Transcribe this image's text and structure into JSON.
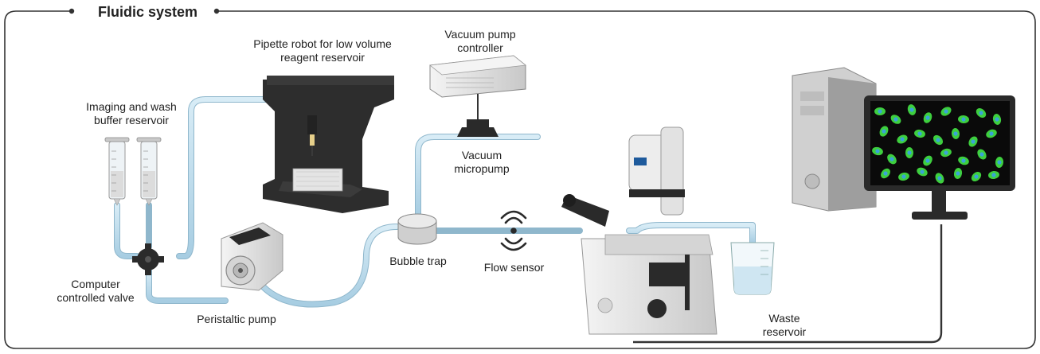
{
  "title": "Fluidic system",
  "labels": {
    "pipette_robot": "Pipette robot for low volume reagent reservoir",
    "vacuum_controller": "Vacuum pump controller",
    "imaging_reservoir": "Imaging and wash buffer reservoir",
    "vacuum_micropump": "Vacuum micropump",
    "bubble_trap": "Bubble trap",
    "flow_sensor": "Flow sensor",
    "valve": "Computer controlled valve",
    "peristaltic_pump": "Peristaltic pump",
    "waste_reservoir": "Waste reservoir"
  },
  "colors": {
    "tube": "#b9d9ea",
    "frame": "#333333",
    "device_dark": "#2e2e2e",
    "device_light": "#e8e8e8",
    "screen": "#0a0a0a",
    "cell_green": "#3ecf3e",
    "cell_blue": "#3aa3d8"
  }
}
